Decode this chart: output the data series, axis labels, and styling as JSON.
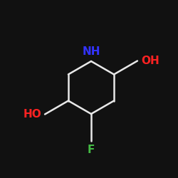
{
  "background_color": "#111111",
  "bond_color": "#e8e8e8",
  "bond_width": 1.8,
  "atoms": {
    "N": {
      "label": "NH",
      "color": "#3333ff",
      "fontsize": 11
    },
    "O1": {
      "label": "HO",
      "color": "#ff2222",
      "fontsize": 11
    },
    "O2": {
      "label": "OH",
      "color": "#ff2222",
      "fontsize": 11
    },
    "F": {
      "label": "F",
      "color": "#44bb44",
      "fontsize": 11
    }
  },
  "figsize": [
    2.5,
    2.5
  ],
  "dpi": 100
}
